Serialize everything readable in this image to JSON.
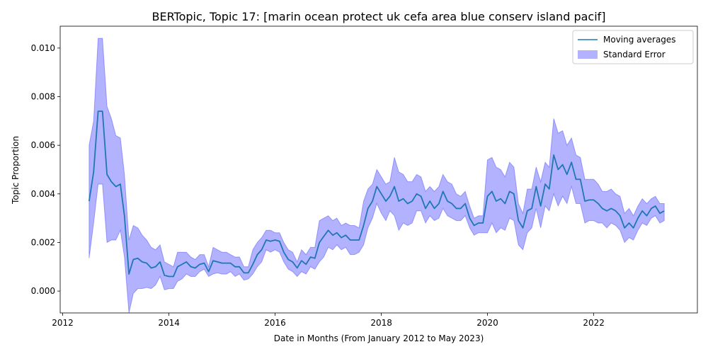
{
  "chart_data": {
    "type": "line",
    "title": "BERTopic, Topic 17: [marin ocean protect uk cefa area blue conserv island pacif]",
    "xlabel": "Date in Months (From January 2012 to May 2023)",
    "ylabel": "Topic Proportion",
    "xlim": [
      "2011-12-15",
      "2023-12-15"
    ],
    "ylim": [
      -0.0009,
      0.0109
    ],
    "x_ticks": [
      {
        "value": "2012-01-01",
        "label": "2012"
      },
      {
        "value": "2014-01-01",
        "label": "2014"
      },
      {
        "value": "2016-01-01",
        "label": "2016"
      },
      {
        "value": "2018-01-01",
        "label": "2018"
      },
      {
        "value": "2020-01-01",
        "label": "2020"
      },
      {
        "value": "2022-01-01",
        "label": "2022"
      }
    ],
    "y_ticks": [
      {
        "value": 0.0,
        "label": "0.000"
      },
      {
        "value": 0.002,
        "label": "0.002"
      },
      {
        "value": 0.004,
        "label": "0.004"
      },
      {
        "value": 0.006,
        "label": "0.006"
      },
      {
        "value": 0.008,
        "label": "0.008"
      },
      {
        "value": 0.01,
        "label": "0.010"
      }
    ],
    "grid": false,
    "legend_position": "top-right",
    "legend": [
      {
        "label": "Moving averages",
        "kind": "line",
        "color": "#1f77b4"
      },
      {
        "label": "Standard Error",
        "kind": "band",
        "color": "#0000ff",
        "opacity": 0.3
      }
    ],
    "colors": {
      "line": "#1f77b4",
      "band": "#0000ff"
    },
    "series": [
      {
        "name": "Moving averages",
        "x": [
          "2012-07",
          "2012-08",
          "2012-09",
          "2012-10",
          "2012-11",
          "2012-12",
          "2013-01",
          "2013-02",
          "2013-03",
          "2013-04",
          "2013-05",
          "2013-06",
          "2013-07",
          "2013-08",
          "2013-09",
          "2013-10",
          "2013-11",
          "2013-12",
          "2014-01",
          "2014-02",
          "2014-03",
          "2014-04",
          "2014-05",
          "2014-06",
          "2014-07",
          "2014-08",
          "2014-09",
          "2014-10",
          "2014-11",
          "2014-12",
          "2015-01",
          "2015-02",
          "2015-03",
          "2015-04",
          "2015-05",
          "2015-06",
          "2015-07",
          "2015-08",
          "2015-09",
          "2015-10",
          "2015-11",
          "2015-12",
          "2016-01",
          "2016-02",
          "2016-03",
          "2016-04",
          "2016-05",
          "2016-06",
          "2016-07",
          "2016-08",
          "2016-09",
          "2016-10",
          "2016-11",
          "2016-12",
          "2017-01",
          "2017-02",
          "2017-03",
          "2017-04",
          "2017-05",
          "2017-06",
          "2017-07",
          "2017-08",
          "2017-09",
          "2017-10",
          "2017-11",
          "2017-12",
          "2018-01",
          "2018-02",
          "2018-03",
          "2018-04",
          "2018-05",
          "2018-06",
          "2018-07",
          "2018-08",
          "2018-09",
          "2018-10",
          "2018-11",
          "2018-12",
          "2019-01",
          "2019-02",
          "2019-03",
          "2019-04",
          "2019-05",
          "2019-06",
          "2019-07",
          "2019-08",
          "2019-09",
          "2019-10",
          "2019-11",
          "2019-12",
          "2020-01",
          "2020-02",
          "2020-03",
          "2020-04",
          "2020-05",
          "2020-06",
          "2020-07",
          "2020-08",
          "2020-09",
          "2020-10",
          "2020-11",
          "2020-12",
          "2021-01",
          "2021-02",
          "2021-03",
          "2021-04",
          "2021-05",
          "2021-06",
          "2021-07",
          "2021-08",
          "2021-09",
          "2021-10",
          "2021-11",
          "2021-12",
          "2022-01",
          "2022-02",
          "2022-03",
          "2022-04",
          "2022-05",
          "2022-06",
          "2022-07",
          "2022-08",
          "2022-09",
          "2022-10",
          "2022-11",
          "2022-12",
          "2023-01",
          "2023-02",
          "2023-03",
          "2023-04",
          "2023-05"
        ],
        "y": [
          0.0037,
          0.0049,
          0.0074,
          0.0074,
          0.0048,
          0.0045,
          0.0043,
          0.0044,
          0.0031,
          0.0007,
          0.0013,
          0.00135,
          0.0012,
          0.00115,
          0.00095,
          0.001,
          0.0012,
          0.00065,
          0.0006,
          0.0006,
          0.001,
          0.0011,
          0.0012,
          0.001,
          0.00095,
          0.0011,
          0.00115,
          0.0008,
          0.00125,
          0.0012,
          0.00115,
          0.00115,
          0.00115,
          0.001,
          0.001,
          0.00075,
          0.00075,
          0.0011,
          0.0015,
          0.0017,
          0.0021,
          0.00205,
          0.0021,
          0.00205,
          0.0016,
          0.0013,
          0.0012,
          0.00095,
          0.00125,
          0.0011,
          0.0014,
          0.00135,
          0.002,
          0.00225,
          0.0025,
          0.0023,
          0.0024,
          0.0022,
          0.0023,
          0.0021,
          0.0021,
          0.0021,
          0.0027,
          0.0034,
          0.0037,
          0.0043,
          0.004,
          0.0037,
          0.0039,
          0.0043,
          0.0037,
          0.0038,
          0.0036,
          0.0037,
          0.004,
          0.0039,
          0.0034,
          0.0037,
          0.0034,
          0.0036,
          0.0041,
          0.0037,
          0.0036,
          0.0034,
          0.0034,
          0.0036,
          0.003,
          0.0027,
          0.0028,
          0.0028,
          0.0039,
          0.0041,
          0.0037,
          0.0038,
          0.0036,
          0.0041,
          0.004,
          0.0029,
          0.0026,
          0.0033,
          0.0034,
          0.0043,
          0.0035,
          0.0044,
          0.0042,
          0.0056,
          0.005,
          0.0052,
          0.0048,
          0.0053,
          0.0046,
          0.0046,
          0.0037,
          0.00375,
          0.00375,
          0.0036,
          0.0034,
          0.0033,
          0.0034,
          0.0033,
          0.0031,
          0.0026,
          0.0028,
          0.0026,
          0.003,
          0.0033,
          0.0031,
          0.0034,
          0.0035,
          0.0032,
          0.0033
        ]
      },
      {
        "name": "Standard Error",
        "x": [
          "2012-07",
          "2012-08",
          "2012-09",
          "2012-10",
          "2012-11",
          "2012-12",
          "2013-01",
          "2013-02",
          "2013-03",
          "2013-04",
          "2013-05",
          "2013-06",
          "2013-07",
          "2013-08",
          "2013-09",
          "2013-10",
          "2013-11",
          "2013-12",
          "2014-01",
          "2014-02",
          "2014-03",
          "2014-04",
          "2014-05",
          "2014-06",
          "2014-07",
          "2014-08",
          "2014-09",
          "2014-10",
          "2014-11",
          "2014-12",
          "2015-01",
          "2015-02",
          "2015-03",
          "2015-04",
          "2015-05",
          "2015-06",
          "2015-07",
          "2015-08",
          "2015-09",
          "2015-10",
          "2015-11",
          "2015-12",
          "2016-01",
          "2016-02",
          "2016-03",
          "2016-04",
          "2016-05",
          "2016-06",
          "2016-07",
          "2016-08",
          "2016-09",
          "2016-10",
          "2016-11",
          "2016-12",
          "2017-01",
          "2017-02",
          "2017-03",
          "2017-04",
          "2017-05",
          "2017-06",
          "2017-07",
          "2017-08",
          "2017-09",
          "2017-10",
          "2017-11",
          "2017-12",
          "2018-01",
          "2018-02",
          "2018-03",
          "2018-04",
          "2018-05",
          "2018-06",
          "2018-07",
          "2018-08",
          "2018-09",
          "2018-10",
          "2018-11",
          "2018-12",
          "2019-01",
          "2019-02",
          "2019-03",
          "2019-04",
          "2019-05",
          "2019-06",
          "2019-07",
          "2019-08",
          "2019-09",
          "2019-10",
          "2019-11",
          "2019-12",
          "2020-01",
          "2020-02",
          "2020-03",
          "2020-04",
          "2020-05",
          "2020-06",
          "2020-07",
          "2020-08",
          "2020-09",
          "2020-10",
          "2020-11",
          "2020-12",
          "2021-01",
          "2021-02",
          "2021-03",
          "2021-04",
          "2021-05",
          "2021-06",
          "2021-07",
          "2021-08",
          "2021-09",
          "2021-10",
          "2021-11",
          "2021-12",
          "2022-01",
          "2022-02",
          "2022-03",
          "2022-04",
          "2022-05",
          "2022-06",
          "2022-07",
          "2022-08",
          "2022-09",
          "2022-10",
          "2022-11",
          "2022-12",
          "2023-01",
          "2023-02",
          "2023-03",
          "2023-04",
          "2023-05"
        ],
        "upper": [
          0.006,
          0.007,
          0.0104,
          0.0104,
          0.0076,
          0.0071,
          0.0064,
          0.0063,
          0.0048,
          0.0021,
          0.0027,
          0.0026,
          0.0023,
          0.0021,
          0.0018,
          0.0017,
          0.0019,
          0.0012,
          0.0011,
          0.001,
          0.0016,
          0.0016,
          0.0016,
          0.0014,
          0.0013,
          0.0015,
          0.0015,
          0.001,
          0.0018,
          0.0017,
          0.0016,
          0.0016,
          0.0015,
          0.0014,
          0.0014,
          0.001,
          0.001,
          0.0017,
          0.002,
          0.0022,
          0.0025,
          0.0025,
          0.0024,
          0.0024,
          0.002,
          0.0017,
          0.0016,
          0.0012,
          0.0017,
          0.0015,
          0.0018,
          0.0018,
          0.0029,
          0.003,
          0.0031,
          0.0029,
          0.003,
          0.0027,
          0.0028,
          0.0027,
          0.0027,
          0.0026,
          0.0037,
          0.0042,
          0.0044,
          0.005,
          0.0047,
          0.0044,
          0.0045,
          0.0055,
          0.0049,
          0.0048,
          0.0045,
          0.0045,
          0.0048,
          0.0047,
          0.0041,
          0.0043,
          0.0041,
          0.0043,
          0.0048,
          0.0045,
          0.0044,
          0.004,
          0.0039,
          0.0041,
          0.0035,
          0.003,
          0.0031,
          0.0031,
          0.0054,
          0.0055,
          0.0051,
          0.005,
          0.0047,
          0.0053,
          0.0051,
          0.0036,
          0.0032,
          0.0042,
          0.0042,
          0.0051,
          0.0045,
          0.0053,
          0.0051,
          0.0071,
          0.0065,
          0.0066,
          0.006,
          0.0063,
          0.0056,
          0.0055,
          0.0046,
          0.0046,
          0.0046,
          0.0044,
          0.0041,
          0.0041,
          0.0042,
          0.004,
          0.0039,
          0.0032,
          0.0034,
          0.0031,
          0.0035,
          0.0038,
          0.0036,
          0.0038,
          0.0039,
          0.0036,
          0.0036
        ],
        "lower": [
          0.00135,
          0.0028,
          0.0044,
          0.0044,
          0.002,
          0.0021,
          0.0021,
          0.0025,
          0.0014,
          -0.0009,
          -0.0001,
          0.0001,
          0.0001,
          0.00015,
          0.0001,
          0.00025,
          0.0006,
          5e-05,
          0.0001,
          0.0001,
          0.0004,
          0.0005,
          0.0007,
          0.0006,
          0.0006,
          0.0008,
          0.0009,
          0.0006,
          0.0007,
          0.00075,
          0.0007,
          0.0007,
          0.0008,
          0.0006,
          0.0007,
          0.00045,
          0.0005,
          0.0007,
          0.001,
          0.0012,
          0.0017,
          0.0016,
          0.0017,
          0.0016,
          0.0012,
          0.0009,
          0.0008,
          0.0006,
          0.0008,
          0.0007,
          0.001,
          0.0009,
          0.0012,
          0.0014,
          0.0018,
          0.0017,
          0.0019,
          0.0017,
          0.0018,
          0.0015,
          0.0015,
          0.0016,
          0.0019,
          0.0026,
          0.003,
          0.0036,
          0.0032,
          0.0029,
          0.0033,
          0.0031,
          0.0025,
          0.0028,
          0.0027,
          0.0028,
          0.0033,
          0.0033,
          0.0028,
          0.0031,
          0.0029,
          0.003,
          0.0034,
          0.0031,
          0.003,
          0.0029,
          0.0029,
          0.0031,
          0.0026,
          0.0023,
          0.0024,
          0.0024,
          0.0024,
          0.0028,
          0.0024,
          0.0026,
          0.0025,
          0.003,
          0.0029,
          0.0019,
          0.0017,
          0.0024,
          0.0026,
          0.0034,
          0.0026,
          0.0035,
          0.0033,
          0.004,
          0.0035,
          0.0039,
          0.0036,
          0.0043,
          0.0036,
          0.0036,
          0.0028,
          0.0029,
          0.0029,
          0.0028,
          0.0028,
          0.0026,
          0.0028,
          0.0027,
          0.0025,
          0.002,
          0.0022,
          0.0021,
          0.0025,
          0.0028,
          0.0027,
          0.003,
          0.0031,
          0.0028,
          0.0029
        ]
      }
    ]
  }
}
